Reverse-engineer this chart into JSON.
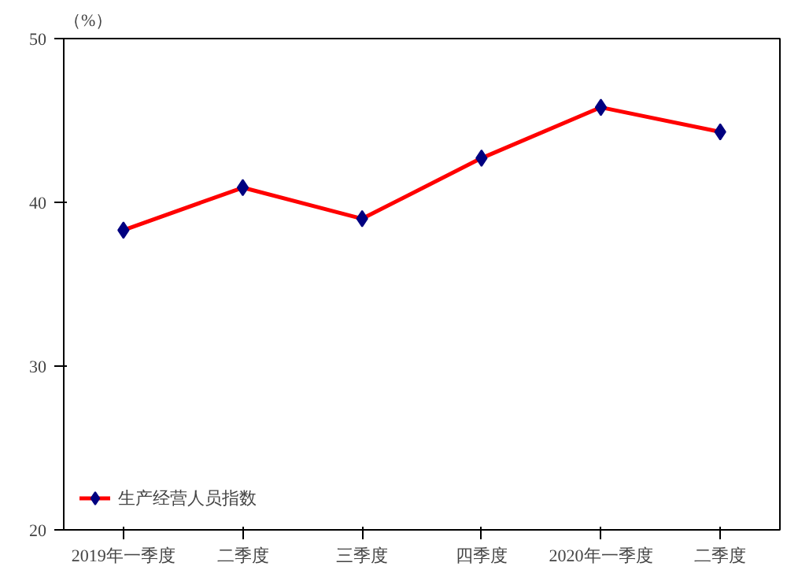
{
  "chart_data": {
    "type": "line",
    "ylabel": "（%）",
    "categories": [
      "2019年一季度",
      "二季度",
      "三季度",
      "四季度",
      "2020年一季度",
      "二季度"
    ],
    "series": [
      {
        "name": "生产经营人员指数",
        "color": "#ff0000",
        "values": [
          38.3,
          40.9,
          39.0,
          42.7,
          45.8,
          44.3
        ]
      }
    ],
    "marker": "diamond",
    "line_style": "solid",
    "ylim": [
      20,
      50
    ],
    "yticks": [
      20,
      30,
      40,
      50
    ],
    "grid": false,
    "legend": "bottom left"
  }
}
